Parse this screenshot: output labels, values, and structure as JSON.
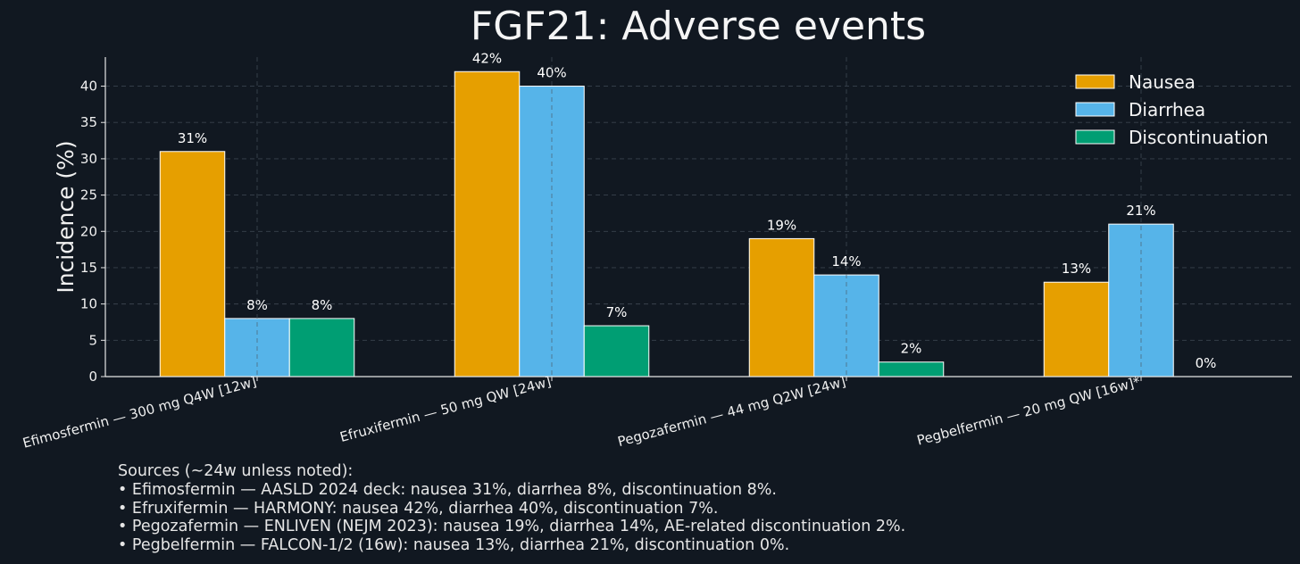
{
  "chart_data": {
    "type": "bar",
    "title": "FGF21: Adverse events",
    "ylabel": "Incidence (%)",
    "xlabel": "",
    "ylim": [
      0,
      44
    ],
    "yticks": [
      0,
      5,
      10,
      15,
      20,
      25,
      30,
      35,
      40
    ],
    "grid": true,
    "legend_position": "top-right",
    "categories": [
      "Efimosfermin — 300 mg Q4W [12w]",
      "Efruxifermin — 50 mg QW [24w]",
      "Pegozafermin — 44 mg Q2W [24w]",
      "Pegbelfermin — 20 mg QW [16w]*"
    ],
    "series": [
      {
        "name": "Nausea",
        "color": "#E69F00",
        "values": [
          31,
          42,
          19,
          13
        ]
      },
      {
        "name": "Diarrhea",
        "color": "#56B4E9",
        "values": [
          8,
          40,
          14,
          21
        ]
      },
      {
        "name": "Discontinuation",
        "color": "#009E73",
        "values": [
          8,
          7,
          2,
          0
        ]
      }
    ],
    "data_label_suffix": "%"
  },
  "sources": {
    "heading": "Sources (~24w unless noted):",
    "lines": [
      "• Efimosfermin — AASLD 2024 deck: nausea 31%, diarrhea 8%, discontinuation 8%.",
      "• Efruxifermin — HARMONY: nausea 42%, diarrhea 40%, discontinuation 7%.",
      "• Pegozafermin — ENLIVEN (NEJM 2023): nausea 19%, diarrhea 14%, AE-related discontinuation 2%.",
      "• Pegbelfermin — FALCON-1/2 (16w): nausea 13%, diarrhea 21%, discontinuation 0%."
    ]
  }
}
